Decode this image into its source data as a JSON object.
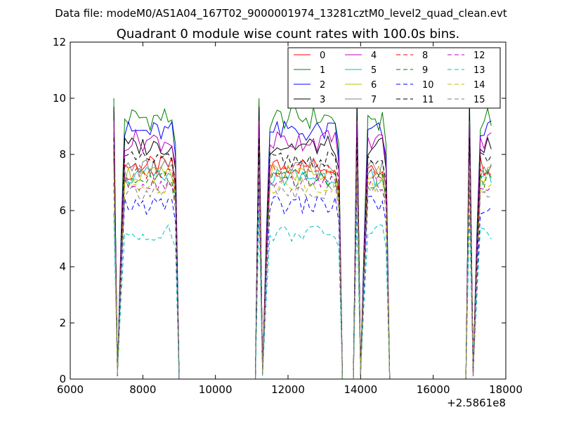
{
  "header": {
    "datafile": "Data file: modeM0/AS1A04_167T02_9000001974_13281cztM0_level2_quad_clean.evt",
    "title": "Quadrant 0 module wise count rates with 100.0s bins."
  },
  "chart_data": {
    "type": "line",
    "x_offset_label": "+2.5861e8",
    "xlim": [
      6000,
      18000
    ],
    "ylim": [
      0,
      12
    ],
    "xticks": [
      6000,
      8000,
      10000,
      12000,
      14000,
      16000,
      18000
    ],
    "yticks": [
      0,
      2,
      4,
      6,
      8,
      10,
      12
    ],
    "legend_position": "top-right",
    "x": [
      7200,
      7300,
      7400,
      7500,
      7600,
      7700,
      7800,
      7900,
      8000,
      8100,
      8200,
      8300,
      8400,
      8500,
      8600,
      8700,
      8800,
      8900,
      9000,
      9100,
      9200,
      9300,
      9400,
      9500,
      9600,
      9700,
      9800,
      9900,
      10000,
      10100,
      10200,
      10300,
      10400,
      10500,
      10600,
      10700,
      10800,
      10900,
      11000,
      11100,
      11200,
      11300,
      11400,
      11500,
      11600,
      11700,
      11800,
      11900,
      12000,
      12100,
      12200,
      12300,
      12400,
      12500,
      12600,
      12700,
      12800,
      12900,
      13000,
      13100,
      13200,
      13300,
      13400,
      13500,
      13600,
      13700,
      13800,
      13900,
      14000,
      14100,
      14200,
      14300,
      14400,
      14500,
      14600,
      14700,
      14800,
      14900,
      15000,
      15100,
      15200,
      15300,
      15400,
      15500,
      15600,
      15700,
      15800,
      15900,
      16000,
      16100,
      16200,
      16300,
      16400,
      16500,
      16600,
      16700,
      16800,
      16900,
      17000,
      17100,
      17200,
      17300,
      17400,
      17500,
      17600
    ],
    "series": [
      {
        "name": "0",
        "color": "#ff0000",
        "dashed": false,
        "base": 7.6,
        "amp": 0.35,
        "first": 8.8
      },
      {
        "name": "1",
        "color": "#008000",
        "dashed": false,
        "base": 9.3,
        "amp": 0.45,
        "first": 10.0
      },
      {
        "name": "2",
        "color": "#0000ff",
        "dashed": false,
        "base": 8.8,
        "amp": 0.4,
        "first": 9.6
      },
      {
        "name": "3",
        "color": "#000000",
        "dashed": false,
        "base": 8.3,
        "amp": 0.35,
        "first": 9.7
      },
      {
        "name": "4",
        "color": "#bf00bf",
        "dashed": false,
        "base": 8.5,
        "amp": 0.4,
        "first": 9.2
      },
      {
        "name": "5",
        "color": "#00bfbf",
        "dashed": false,
        "base": 7.2,
        "amp": 0.35,
        "first": 8.0
      },
      {
        "name": "6",
        "color": "#bfbf00",
        "dashed": false,
        "base": 7.3,
        "amp": 0.35,
        "first": 8.1
      },
      {
        "name": "7",
        "color": "#7f7f7f",
        "dashed": false,
        "base": 7.5,
        "amp": 0.35,
        "first": 8.3
      },
      {
        "name": "8",
        "color": "#ff0000",
        "dashed": true,
        "base": 7.4,
        "amp": 0.3,
        "first": 8.2
      },
      {
        "name": "9",
        "color": "#008000",
        "dashed": true,
        "base": 7.1,
        "amp": 0.3,
        "first": 7.9
      },
      {
        "name": "10",
        "color": "#0000ff",
        "dashed": true,
        "base": 6.2,
        "amp": 0.35,
        "first": 7.0
      },
      {
        "name": "11",
        "color": "#000000",
        "dashed": true,
        "base": 7.8,
        "amp": 0.3,
        "first": 8.6
      },
      {
        "name": "12",
        "color": "#bf00bf",
        "dashed": true,
        "base": 7.0,
        "amp": 0.3,
        "first": 7.8
      },
      {
        "name": "13",
        "color": "#00bfbf",
        "dashed": true,
        "base": 5.2,
        "amp": 0.3,
        "first": 5.9
      },
      {
        "name": "14",
        "color": "#bfbf00",
        "dashed": true,
        "base": 6.9,
        "amp": 0.3,
        "first": 7.6
      },
      {
        "name": "15",
        "color": "#7f7f7f",
        "dashed": true,
        "base": 6.7,
        "amp": 0.3,
        "first": 7.5
      }
    ],
    "segments": [
      {
        "start": 7200,
        "end": 8900
      },
      {
        "start": 11200,
        "end": 13400
      },
      {
        "start": 13900,
        "end": 14700
      },
      {
        "start": 17000,
        "end": 17600
      }
    ]
  }
}
